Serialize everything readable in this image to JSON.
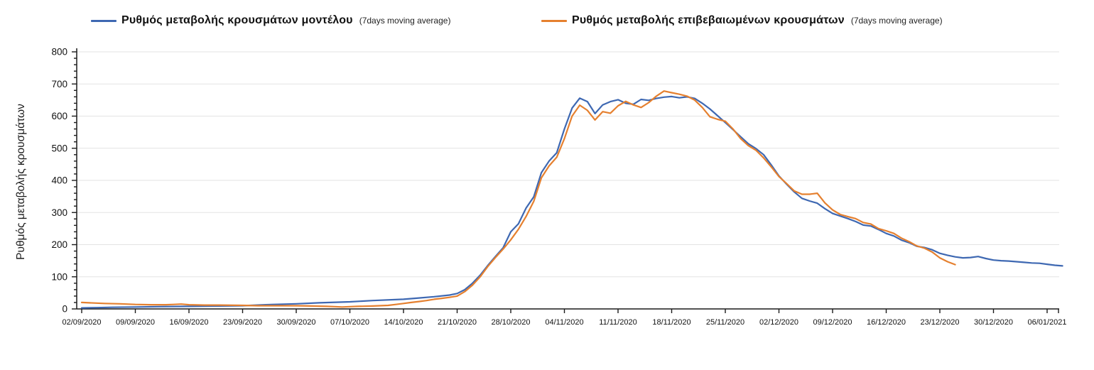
{
  "chart_data": {
    "type": "line",
    "title": "",
    "xlabel": "",
    "ylabel": "Ρυθμός μεταβολής κρουσμάτων",
    "ylim": [
      0,
      800
    ],
    "y_major_step": 100,
    "y_minor_step": 20,
    "grid": "horizontal-only",
    "legend_position": "top",
    "y_tick_labels": [
      "0",
      "100",
      "200",
      "300",
      "400",
      "500",
      "600",
      "700",
      "800"
    ],
    "x_tick_labels": [
      "02/09/2020",
      "09/09/2020",
      "16/09/2020",
      "23/09/2020",
      "30/09/2020",
      "07/10/2020",
      "14/10/2020",
      "21/10/2020",
      "28/10/2020",
      "04/11/2020",
      "11/11/2020",
      "18/11/2020",
      "25/11/2020",
      "02/12/2020",
      "09/12/2020",
      "16/12/2020",
      "23/12/2020",
      "30/12/2020",
      "06/01/2021"
    ],
    "x_tick_days": [
      0,
      7,
      14,
      21,
      28,
      35,
      42,
      49,
      56,
      63,
      70,
      77,
      84,
      91,
      98,
      105,
      112,
      119,
      126
    ],
    "axis_color": "#1a1a1a",
    "gridline_color": "#e3e3e3",
    "series": [
      {
        "name": "Ρυθμός μεταβολής κρουσμάτων μοντέλου",
        "name_suffix": "(7days moving average)",
        "color": "#3E68B2",
        "points": [
          [
            0,
            3
          ],
          [
            2,
            4
          ],
          [
            4,
            5
          ],
          [
            7,
            6
          ],
          [
            10,
            7
          ],
          [
            14,
            8
          ],
          [
            18,
            9
          ],
          [
            21,
            10
          ],
          [
            24,
            13
          ],
          [
            28,
            16
          ],
          [
            31,
            19
          ],
          [
            35,
            22
          ],
          [
            38,
            26
          ],
          [
            42,
            30
          ],
          [
            44,
            34
          ],
          [
            46,
            38
          ],
          [
            48,
            43
          ],
          [
            49,
            48
          ],
          [
            50,
            60
          ],
          [
            51,
            80
          ],
          [
            52,
            105
          ],
          [
            53,
            135
          ],
          [
            54,
            163
          ],
          [
            55,
            190
          ],
          [
            56,
            240
          ],
          [
            57,
            265
          ],
          [
            58,
            314
          ],
          [
            59,
            349
          ],
          [
            60,
            424
          ],
          [
            61,
            460
          ],
          [
            62,
            486
          ],
          [
            63,
            560
          ],
          [
            64,
            625
          ],
          [
            65,
            656
          ],
          [
            66,
            645
          ],
          [
            67,
            608
          ],
          [
            68,
            635
          ],
          [
            69,
            645
          ],
          [
            70,
            651
          ],
          [
            71,
            640
          ],
          [
            72,
            637
          ],
          [
            73,
            652
          ],
          [
            74,
            649
          ],
          [
            75,
            655
          ],
          [
            76,
            659
          ],
          [
            77,
            661
          ],
          [
            78,
            657
          ],
          [
            79,
            660
          ],
          [
            80,
            655
          ],
          [
            81,
            640
          ],
          [
            82,
            622
          ],
          [
            83,
            601
          ],
          [
            84,
            580
          ],
          [
            85,
            558
          ],
          [
            86,
            536
          ],
          [
            87,
            514
          ],
          [
            88,
            499
          ],
          [
            89,
            480
          ],
          [
            90,
            448
          ],
          [
            91,
            414
          ],
          [
            92,
            388
          ],
          [
            93,
            364
          ],
          [
            94,
            344
          ],
          [
            95,
            336
          ],
          [
            96,
            329
          ],
          [
            97,
            312
          ],
          [
            98,
            297
          ],
          [
            99,
            289
          ],
          [
            100,
            281
          ],
          [
            101,
            272
          ],
          [
            102,
            261
          ],
          [
            103,
            258
          ],
          [
            104,
            247
          ],
          [
            105,
            235
          ],
          [
            106,
            227
          ],
          [
            107,
            214
          ],
          [
            108,
            206
          ],
          [
            109,
            195
          ],
          [
            110,
            191
          ],
          [
            111,
            184
          ],
          [
            112,
            173
          ],
          [
            113,
            167
          ],
          [
            114,
            162
          ],
          [
            115,
            159
          ],
          [
            116,
            160
          ],
          [
            117,
            163
          ],
          [
            118,
            157
          ],
          [
            119,
            152
          ],
          [
            120,
            150
          ],
          [
            121,
            149
          ],
          [
            122,
            147
          ],
          [
            123,
            145
          ],
          [
            124,
            143
          ],
          [
            125,
            142
          ],
          [
            126,
            139
          ],
          [
            127,
            136
          ],
          [
            128,
            134
          ]
        ]
      },
      {
        "name": "Ρυθμός μεταβολής επιβεβαιωμένων κρουσμάτων",
        "name_suffix": "(7days moving average)",
        "color": "#E5802F",
        "points": [
          [
            0,
            20
          ],
          [
            1,
            19
          ],
          [
            3,
            17
          ],
          [
            5,
            16
          ],
          [
            7,
            14
          ],
          [
            9,
            13
          ],
          [
            11,
            13
          ],
          [
            12,
            14
          ],
          [
            13,
            15
          ],
          [
            14,
            13
          ],
          [
            16,
            12
          ],
          [
            18,
            12
          ],
          [
            21,
            11
          ],
          [
            23,
            10
          ],
          [
            25,
            10
          ],
          [
            28,
            10
          ],
          [
            30,
            9
          ],
          [
            32,
            8
          ],
          [
            33,
            7
          ],
          [
            34,
            6
          ],
          [
            35,
            7
          ],
          [
            36,
            8
          ],
          [
            38,
            9
          ],
          [
            40,
            11
          ],
          [
            41,
            14
          ],
          [
            42,
            17
          ],
          [
            43,
            20
          ],
          [
            44,
            23
          ],
          [
            45,
            26
          ],
          [
            46,
            30
          ],
          [
            47,
            33
          ],
          [
            48,
            36
          ],
          [
            49,
            40
          ],
          [
            50,
            54
          ],
          [
            51,
            74
          ],
          [
            52,
            100
          ],
          [
            53,
            132
          ],
          [
            54,
            160
          ],
          [
            55,
            186
          ],
          [
            56,
            215
          ],
          [
            57,
            248
          ],
          [
            58,
            288
          ],
          [
            59,
            335
          ],
          [
            60,
            408
          ],
          [
            61,
            445
          ],
          [
            62,
            472
          ],
          [
            63,
            530
          ],
          [
            64,
            600
          ],
          [
            65,
            634
          ],
          [
            66,
            618
          ],
          [
            67,
            588
          ],
          [
            68,
            614
          ],
          [
            69,
            609
          ],
          [
            70,
            632
          ],
          [
            71,
            646
          ],
          [
            72,
            635
          ],
          [
            73,
            627
          ],
          [
            74,
            642
          ],
          [
            75,
            662
          ],
          [
            76,
            678
          ],
          [
            77,
            673
          ],
          [
            78,
            668
          ],
          [
            79,
            662
          ],
          [
            80,
            650
          ],
          [
            81,
            627
          ],
          [
            82,
            598
          ],
          [
            83,
            590
          ],
          [
            84,
            584
          ],
          [
            85,
            560
          ],
          [
            86,
            530
          ],
          [
            87,
            508
          ],
          [
            88,
            494
          ],
          [
            89,
            470
          ],
          [
            90,
            442
          ],
          [
            91,
            412
          ],
          [
            92,
            390
          ],
          [
            93,
            367
          ],
          [
            94,
            357
          ],
          [
            95,
            357
          ],
          [
            96,
            360
          ],
          [
            97,
            330
          ],
          [
            98,
            308
          ],
          [
            99,
            294
          ],
          [
            100,
            287
          ],
          [
            101,
            281
          ],
          [
            102,
            269
          ],
          [
            103,
            264
          ],
          [
            104,
            250
          ],
          [
            105,
            243
          ],
          [
            106,
            235
          ],
          [
            107,
            220
          ],
          [
            108,
            209
          ],
          [
            109,
            196
          ],
          [
            110,
            189
          ],
          [
            111,
            177
          ],
          [
            112,
            159
          ],
          [
            113,
            147
          ],
          [
            114,
            138
          ]
        ]
      }
    ]
  }
}
